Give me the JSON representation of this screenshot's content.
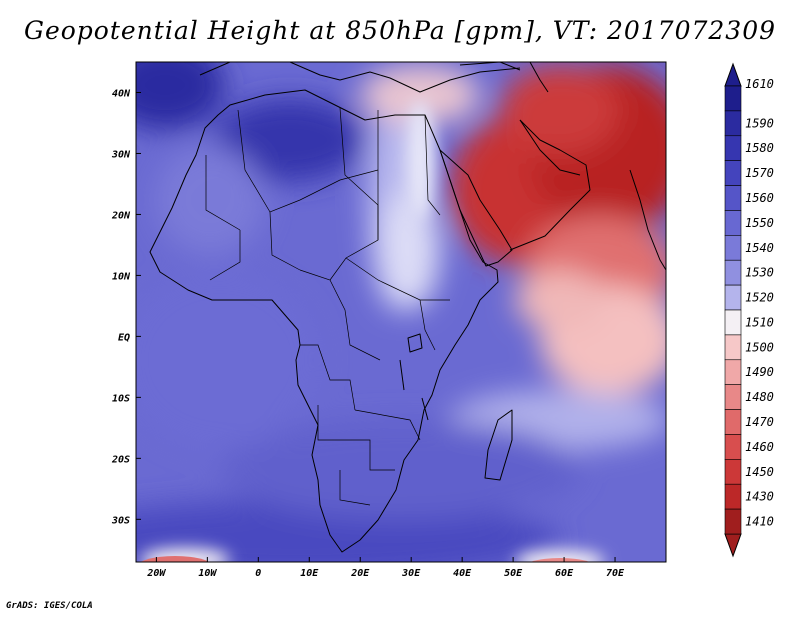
{
  "title": "Geopotential Height at 850hPa [gpm], VT: 2017072309",
  "credit": "GrADS: IGES/COLA",
  "map": {
    "variable": "Geopotential Height",
    "level": "850hPa",
    "units": "gpm",
    "valid_time": "2017072309",
    "lon_range": [
      -24,
      80
    ],
    "lat_range": [
      -37,
      45
    ],
    "x_ticks": [
      {
        "lon": -20,
        "label": "20W"
      },
      {
        "lon": -10,
        "label": "10W"
      },
      {
        "lon": 0,
        "label": "0"
      },
      {
        "lon": 10,
        "label": "10E"
      },
      {
        "lon": 20,
        "label": "20E"
      },
      {
        "lon": 30,
        "label": "30E"
      },
      {
        "lon": 40,
        "label": "40E"
      },
      {
        "lon": 50,
        "label": "50E"
      },
      {
        "lon": 60,
        "label": "60E"
      },
      {
        "lon": 70,
        "label": "70E"
      }
    ],
    "y_ticks": [
      {
        "lat": 40,
        "label": "40N"
      },
      {
        "lat": 30,
        "label": "30N"
      },
      {
        "lat": 20,
        "label": "20N"
      },
      {
        "lat": 10,
        "label": "10N"
      },
      {
        "lat": 0,
        "label": "EQ"
      },
      {
        "lat": -10,
        "label": "10S"
      },
      {
        "lat": -20,
        "label": "20S"
      },
      {
        "lat": -30,
        "label": "30S"
      }
    ]
  },
  "colorbar": {
    "levels": [
      {
        "label": "1610",
        "color": "#1e1e8c"
      },
      {
        "label": "1590",
        "color": "#2b2ba0"
      },
      {
        "label": "1580",
        "color": "#3636b0"
      },
      {
        "label": "1570",
        "color": "#4444bd"
      },
      {
        "label": "1560",
        "color": "#5555c8"
      },
      {
        "label": "1550",
        "color": "#6868d2"
      },
      {
        "label": "1540",
        "color": "#7a7ad9"
      },
      {
        "label": "1530",
        "color": "#9090e0"
      },
      {
        "label": "1520",
        "color": "#b4b4ec"
      },
      {
        "label": "1510",
        "color": "#f4f0f4"
      },
      {
        "label": "1500",
        "color": "#f6c8c8"
      },
      {
        "label": "1490",
        "color": "#f0a8a8"
      },
      {
        "label": "1480",
        "color": "#e88888"
      },
      {
        "label": "1470",
        "color": "#e06a6a"
      },
      {
        "label": "1460",
        "color": "#d84e4e"
      },
      {
        "label": "1450",
        "color": "#cc3838"
      },
      {
        "label": "1430",
        "color": "#bc2828"
      },
      {
        "label": "1410",
        "color": "#a01e1e"
      }
    ]
  }
}
